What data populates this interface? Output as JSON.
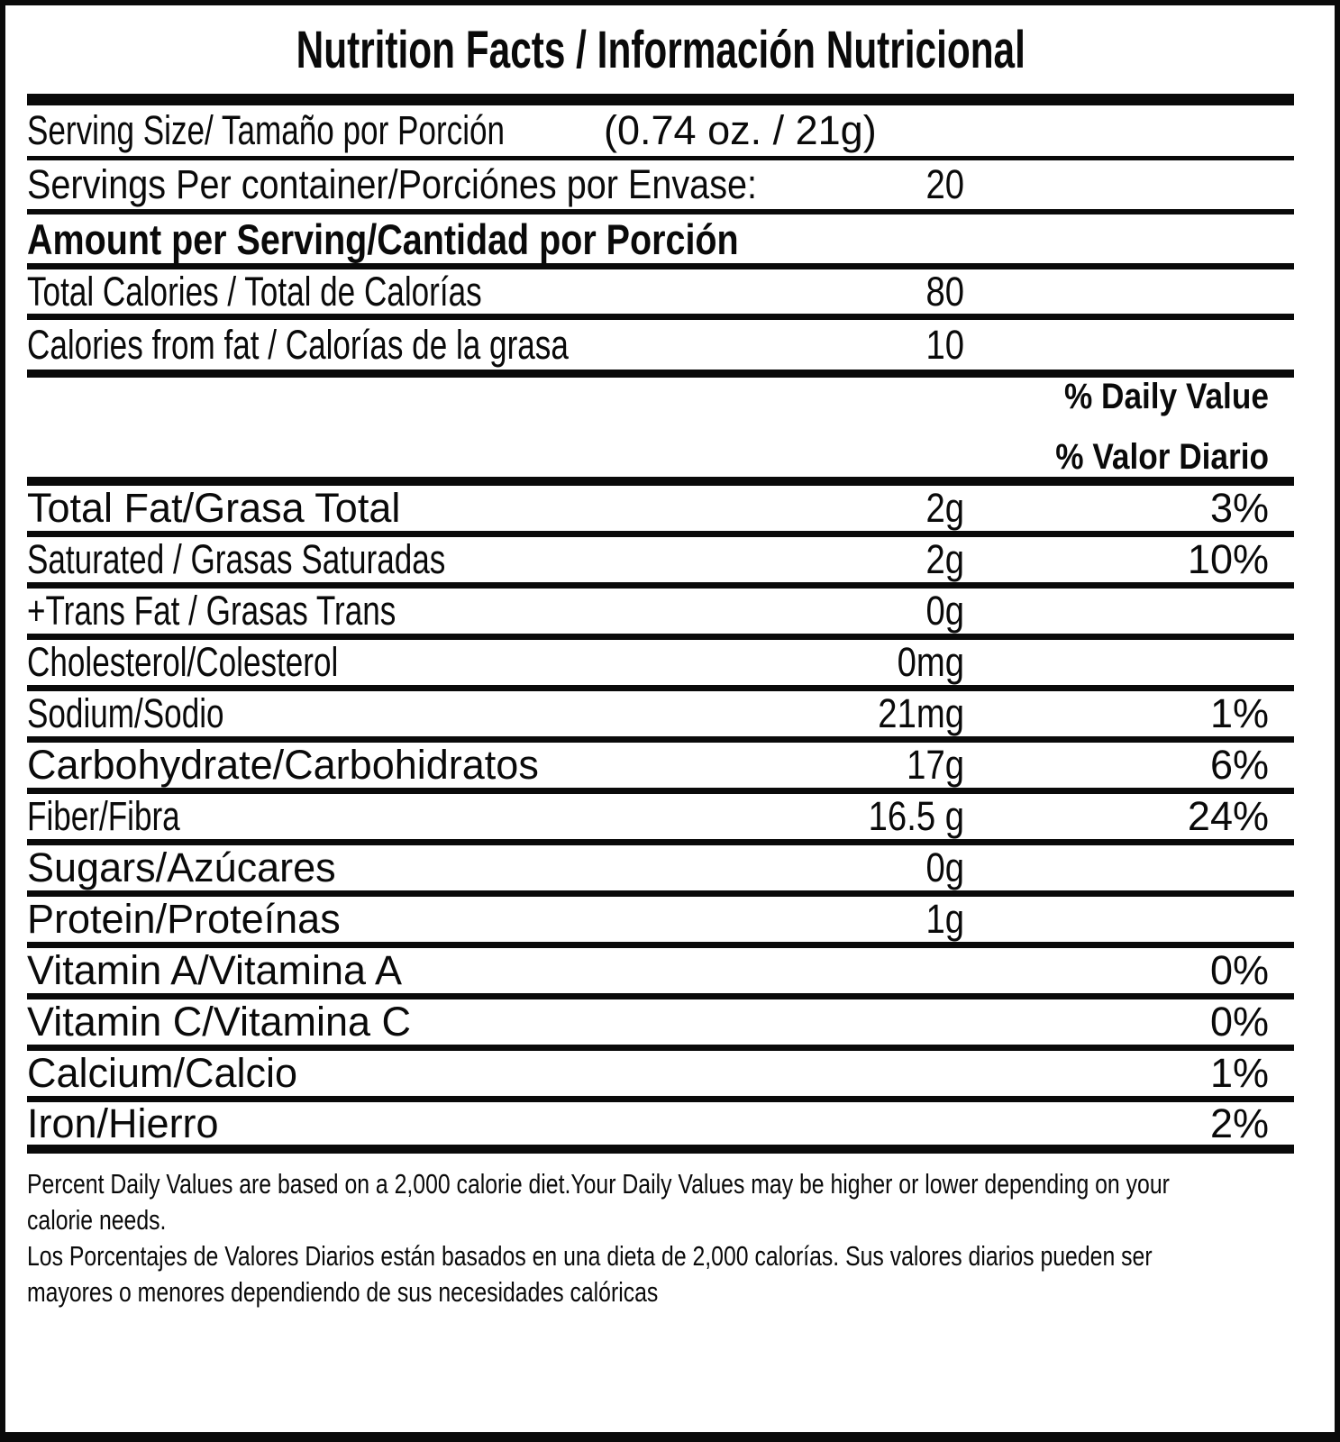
{
  "nutrition_label": {
    "title": "Nutrition Facts / Información Nutricional",
    "serving_size": {
      "label": "Serving Size/ Tamaño por Porción",
      "value": "(0.74 oz. / 21g)"
    },
    "servings_per_container": {
      "label": "Servings Per container/Porciónes por Envase:",
      "value": "20"
    },
    "amount_per_serving_header": "Amount per Serving/Cantidad por Porción",
    "calories": [
      {
        "label": "Total Calories / Total de Calorías",
        "value": "80"
      },
      {
        "label": "Calories from fat / Calorías de la grasa",
        "value": "10"
      }
    ],
    "daily_value_header": {
      "en": "% Daily Value",
      "es": "% Valor Diario"
    },
    "nutrients": [
      {
        "label": "Total Fat/Grasa Total",
        "amount": "2g",
        "daily_value": "3%",
        "condensed": false
      },
      {
        "label": "Saturated / Grasas Saturadas",
        "amount": "2g",
        "daily_value": "10%",
        "condensed": true
      },
      {
        "label": "+Trans Fat / Grasas Trans",
        "amount": "0g",
        "daily_value": "",
        "condensed": true
      },
      {
        "label": "Cholesterol/Colesterol",
        "amount": "0mg",
        "daily_value": "",
        "condensed": true
      },
      {
        "label": "Sodium/Sodio",
        "amount": "21mg",
        "daily_value": "1%",
        "condensed": true
      },
      {
        "label": "Carbohydrate/Carbohidratos",
        "amount": "17g",
        "daily_value": "6%",
        "condensed": false
      },
      {
        "label": "Fiber/Fibra",
        "amount": "16.5 g",
        "daily_value": "24%",
        "condensed": true
      },
      {
        "label": "Sugars/Azúcares",
        "amount": "0g",
        "daily_value": "",
        "condensed": false
      },
      {
        "label": "Protein/Proteínas",
        "amount": "1g",
        "daily_value": "",
        "condensed": false
      },
      {
        "label": "Vitamin A/Vitamina A",
        "amount": "",
        "daily_value": "0%",
        "condensed": false
      },
      {
        "label": "Vitamin C/Vitamina C",
        "amount": "",
        "daily_value": "0%",
        "condensed": false
      },
      {
        "label": "Calcium/Calcio",
        "amount": "",
        "daily_value": "1%",
        "condensed": false
      },
      {
        "label": "Iron/Hierro",
        "amount": "",
        "daily_value": "2%",
        "condensed": false
      }
    ],
    "footnote": {
      "en_lines": [
        "Percent Daily Values are based on a 2,000 calorie diet.Your Daily Values may be higher or lower depending on your",
        "calorie needs."
      ],
      "es_lines": [
        "Los Porcentajes de Valores Diarios están basados en una dieta de 2,000 calorías. Sus valores diarios pueden ser",
        "mayores o menores dependiendo de sus necesidades calóricas"
      ]
    },
    "colors": {
      "ink": "#0a0a0a",
      "background": "#ffffff"
    }
  }
}
